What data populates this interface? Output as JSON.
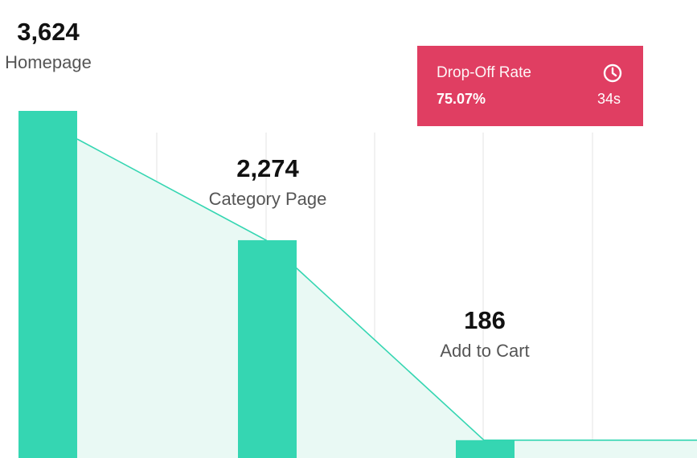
{
  "colors": {
    "bar": "#35d6b2",
    "connector_fill": "#e9f9f4",
    "connector_line": "#35d6b2",
    "grid": "#f1f1f1",
    "dropoff_bg": "#e03e62",
    "dropoff_text": "#ffffff"
  },
  "dropoff": {
    "title": "Drop-Off Rate",
    "rate": "75.07%",
    "time": "34s",
    "icon": "clock-icon"
  },
  "chart_data": {
    "type": "bar",
    "categories": [
      "Homepage",
      "Category Page",
      "Add to Cart"
    ],
    "values": [
      3624,
      2274,
      186
    ],
    "value_labels": [
      "3,624",
      "2,274",
      "186"
    ],
    "ylim": [
      0,
      3624
    ],
    "grid": true,
    "connector": "area"
  }
}
